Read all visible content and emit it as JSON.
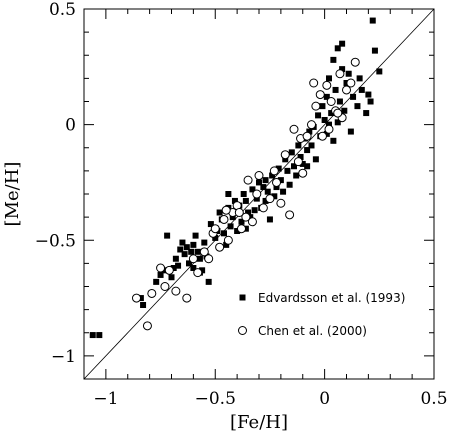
{
  "chart_data": {
    "type": "scatter",
    "xlabel": "[Fe/H]",
    "ylabel": "[Me/H]",
    "xlim": [
      -1.1,
      0.5
    ],
    "ylim": [
      -1.1,
      0.5
    ],
    "x_ticks": [
      -1,
      -0.5,
      0,
      0.5
    ],
    "y_ticks": [
      -1,
      -0.5,
      0,
      0.5
    ],
    "x_tick_labels": [
      "−1",
      "−0.5",
      "0",
      "0.5"
    ],
    "y_tick_labels": [
      "−1",
      "−0.5",
      "0",
      "0.5"
    ],
    "reference_line": {
      "kind": "one-to-one",
      "from": [
        -1.1,
        -1.1
      ],
      "to": [
        0.5,
        0.5
      ]
    },
    "legend_position": "lower-right",
    "series": [
      {
        "name": "Edvardsson et al. (1993)",
        "marker": "filled-square",
        "color": "#000000",
        "points": [
          [
            -1.06,
            -0.91
          ],
          [
            -1.03,
            -0.91
          ],
          [
            -0.84,
            -0.75
          ],
          [
            -0.83,
            -0.78
          ],
          [
            -0.77,
            -0.68
          ],
          [
            -0.75,
            -0.65
          ],
          [
            -0.73,
            -0.63
          ],
          [
            -0.72,
            -0.48
          ],
          [
            -0.7,
            -0.66
          ],
          [
            -0.69,
            -0.62
          ],
          [
            -0.68,
            -0.58
          ],
          [
            -0.67,
            -0.61
          ],
          [
            -0.66,
            -0.54
          ],
          [
            -0.65,
            -0.51
          ],
          [
            -0.64,
            -0.56
          ],
          [
            -0.62,
            -0.6
          ],
          [
            -0.61,
            -0.55
          ],
          [
            -0.6,
            -0.52
          ],
          [
            -0.6,
            -0.62
          ],
          [
            -0.59,
            -0.48
          ],
          [
            -0.58,
            -0.55
          ],
          [
            -0.57,
            -0.58
          ],
          [
            -0.56,
            -0.63
          ],
          [
            -0.55,
            -0.51
          ],
          [
            -0.54,
            -0.57
          ],
          [
            -0.53,
            -0.68
          ],
          [
            -0.52,
            -0.43
          ],
          [
            -0.5,
            -0.49
          ],
          [
            -0.49,
            -0.46
          ],
          [
            -0.48,
            -0.38
          ],
          [
            -0.47,
            -0.41
          ],
          [
            -0.46,
            -0.47
          ],
          [
            -0.45,
            -0.52
          ],
          [
            -0.44,
            -0.36
          ],
          [
            -0.43,
            -0.44
          ],
          [
            -0.42,
            -0.4
          ],
          [
            -0.41,
            -0.33
          ],
          [
            -0.4,
            -0.46
          ],
          [
            -0.39,
            -0.35
          ],
          [
            -0.38,
            -0.42
          ],
          [
            -0.37,
            -0.3
          ],
          [
            -0.36,
            -0.45
          ],
          [
            -0.35,
            -0.38
          ],
          [
            -0.34,
            -0.4
          ],
          [
            -0.33,
            -0.28
          ],
          [
            -0.32,
            -0.37
          ],
          [
            -0.31,
            -0.32
          ],
          [
            -0.3,
            -0.25
          ],
          [
            -0.29,
            -0.36
          ],
          [
            -0.28,
            -0.27
          ],
          [
            -0.27,
            -0.33
          ],
          [
            -0.26,
            -0.29
          ],
          [
            -0.25,
            -0.41
          ],
          [
            -0.24,
            -0.22
          ],
          [
            -0.23,
            -0.31
          ],
          [
            -0.22,
            -0.27
          ],
          [
            -0.21,
            -0.19
          ],
          [
            -0.2,
            -0.24
          ],
          [
            -0.19,
            -0.29
          ],
          [
            -0.18,
            -0.15
          ],
          [
            -0.17,
            -0.2
          ],
          [
            -0.16,
            -0.26
          ],
          [
            -0.15,
            -0.12
          ],
          [
            -0.14,
            -0.18
          ],
          [
            -0.13,
            -0.22
          ],
          [
            -0.12,
            -0.09
          ],
          [
            -0.11,
            -0.14
          ],
          [
            -0.1,
            -0.17
          ],
          [
            -0.09,
            -0.06
          ],
          [
            -0.08,
            -0.11
          ],
          [
            -0.07,
            -0.03
          ],
          [
            -0.06,
            -0.09
          ],
          [
            -0.05,
            -0.01
          ],
          [
            -0.04,
            -0.15
          ],
          [
            -0.03,
            0.04
          ],
          [
            -0.02,
            -0.05
          ],
          [
            -0.01,
            0.08
          ],
          [
            0.0,
            0.02
          ],
          [
            0.01,
            0.12
          ],
          [
            0.01,
            -0.04
          ],
          [
            0.02,
            0.2
          ],
          [
            0.03,
            0.05
          ],
          [
            0.04,
            0.28
          ],
          [
            0.04,
            -0.07
          ],
          [
            0.05,
            0.15
          ],
          [
            0.06,
            0.33
          ],
          [
            0.06,
            0.01
          ],
          [
            0.07,
            0.1
          ],
          [
            0.08,
            0.24
          ],
          [
            0.08,
            0.35
          ],
          [
            0.09,
            0.06
          ],
          [
            0.1,
            0.18
          ],
          [
            0.11,
            0.22
          ],
          [
            0.12,
            -0.03
          ],
          [
            0.13,
            0.12
          ],
          [
            0.14,
            0.27
          ],
          [
            0.15,
            0.08
          ],
          [
            0.16,
            0.2
          ],
          [
            0.17,
            0.15
          ],
          [
            0.19,
            0.05
          ],
          [
            0.2,
            0.13
          ],
          [
            0.21,
            0.1
          ],
          [
            0.22,
            0.45
          ],
          [
            0.23,
            0.32
          ],
          [
            0.25,
            0.23
          ],
          [
            -0.57,
            -0.64
          ],
          [
            -0.63,
            -0.53
          ],
          [
            -0.44,
            -0.3
          ],
          [
            -0.27,
            -0.24
          ],
          [
            -0.08,
            -0.18
          ],
          [
            0.02,
            0.0
          ],
          [
            -0.36,
            -0.33
          ]
        ]
      },
      {
        "name": "Chen et al. (2000)",
        "marker": "open-circle",
        "color": "#000000",
        "points": [
          [
            -0.86,
            -0.75
          ],
          [
            -0.81,
            -0.87
          ],
          [
            -0.79,
            -0.73
          ],
          [
            -0.75,
            -0.62
          ],
          [
            -0.73,
            -0.7
          ],
          [
            -0.71,
            -0.63
          ],
          [
            -0.68,
            -0.72
          ],
          [
            -0.63,
            -0.75
          ],
          [
            -0.6,
            -0.58
          ],
          [
            -0.58,
            -0.64
          ],
          [
            -0.55,
            -0.55
          ],
          [
            -0.51,
            -0.47
          ],
          [
            -0.48,
            -0.53
          ],
          [
            -0.46,
            -0.41
          ],
          [
            -0.44,
            -0.5
          ],
          [
            -0.42,
            -0.38
          ],
          [
            -0.4,
            -0.35
          ],
          [
            -0.38,
            -0.45
          ],
          [
            -0.36,
            -0.4
          ],
          [
            -0.35,
            -0.24
          ],
          [
            -0.33,
            -0.42
          ],
          [
            -0.31,
            -0.3
          ],
          [
            -0.28,
            -0.36
          ],
          [
            -0.25,
            -0.32
          ],
          [
            -0.23,
            -0.2
          ],
          [
            -0.22,
            -0.25
          ],
          [
            -0.2,
            -0.34
          ],
          [
            -0.18,
            -0.13
          ],
          [
            -0.16,
            -0.39
          ],
          [
            -0.14,
            -0.02
          ],
          [
            -0.12,
            -0.16
          ],
          [
            -0.11,
            -0.06
          ],
          [
            -0.1,
            -0.21
          ],
          [
            -0.08,
            -0.05
          ],
          [
            -0.06,
            0.0
          ],
          [
            -0.04,
            0.08
          ],
          [
            -0.02,
            0.13
          ],
          [
            -0.01,
            -0.05
          ],
          [
            0.01,
            0.17
          ],
          [
            0.03,
            0.1
          ],
          [
            0.05,
            0.06
          ],
          [
            0.07,
            0.22
          ],
          [
            0.08,
            0.03
          ],
          [
            0.1,
            0.15
          ],
          [
            0.12,
            0.18
          ],
          [
            0.14,
            0.27
          ],
          [
            -0.53,
            -0.58
          ],
          [
            -0.5,
            -0.45
          ],
          [
            -0.45,
            -0.37
          ],
          [
            -0.3,
            -0.22
          ],
          [
            -0.05,
            0.18
          ],
          [
            0.06,
            0.05
          ],
          [
            -0.39,
            -0.38
          ],
          [
            0.02,
            -0.02
          ]
        ]
      }
    ]
  }
}
